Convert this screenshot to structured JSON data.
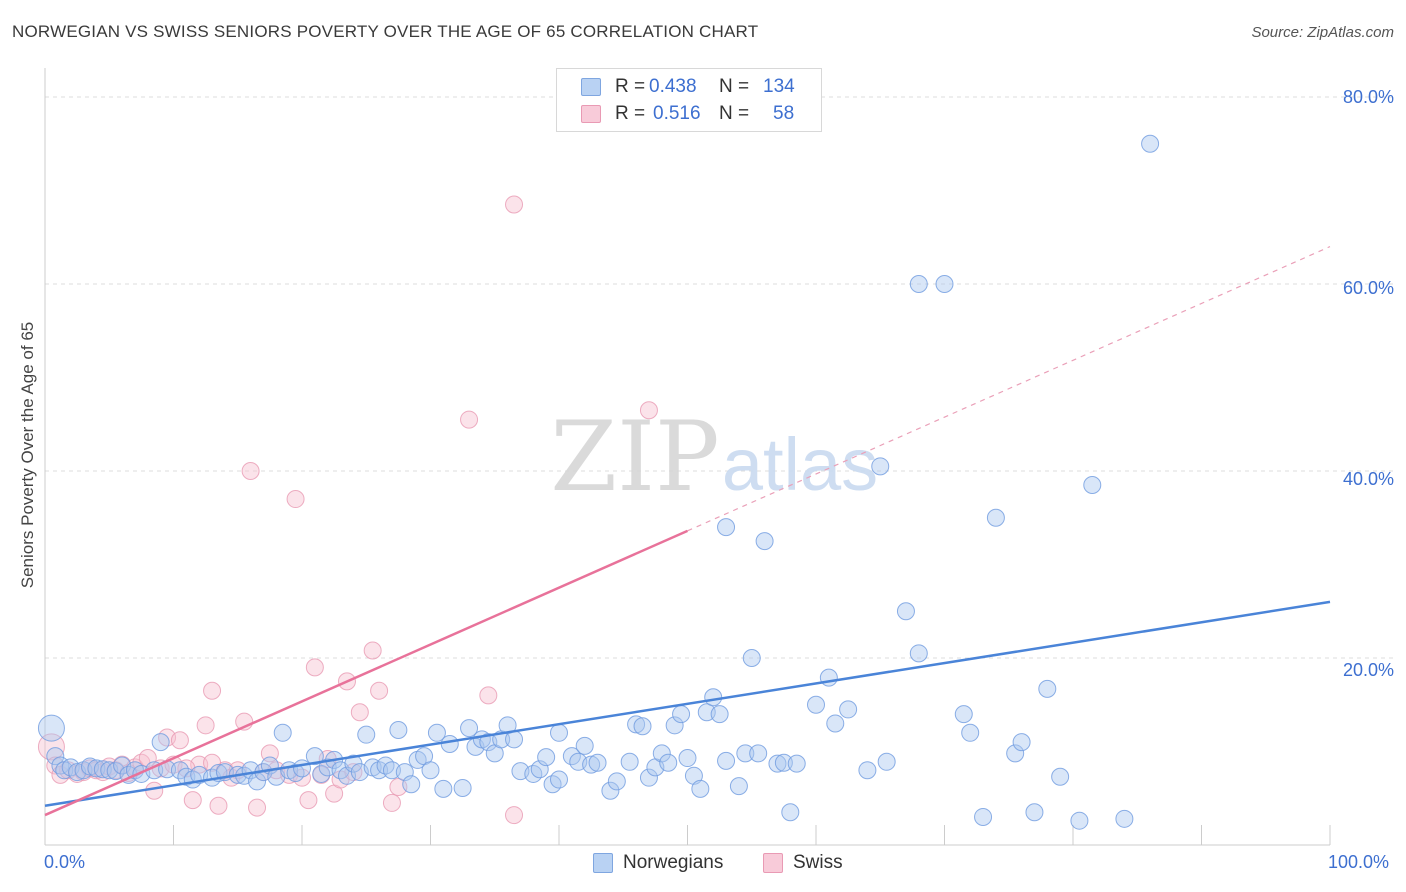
{
  "title": "NORWEGIAN VS SWISS SENIORS POVERTY OVER THE AGE OF 65 CORRELATION CHART",
  "source": "Source: ZipAtlas.com",
  "watermark": {
    "zip": "ZIP",
    "atlas": "atlas"
  },
  "colors": {
    "blue": "#4a84d8",
    "blue_fill": "#aac8f0",
    "pink": "#e8729a",
    "pink_fill": "#f6c0d1",
    "grid": "#dddddd"
  },
  "legend_top": {
    "rows": [
      {
        "r_label": "R =",
        "r_value": "0.438",
        "n_label": "N =",
        "n_value": "134"
      },
      {
        "r_label": "R =",
        "r_value": "0.516",
        "n_label": "N =",
        "n_value": "58"
      }
    ]
  },
  "legend_bottom": {
    "items": [
      "Norwegians",
      "Swiss"
    ]
  },
  "x_ticks": {
    "left": "0.0%",
    "right": "100.0%"
  },
  "y_ticks": [
    "80.0%",
    "60.0%",
    "40.0%",
    "20.0%"
  ],
  "chart_data": {
    "type": "scatter",
    "title": "NORWEGIAN VS SWISS SENIORS POVERTY OVER THE AGE OF 65 CORRELATION CHART",
    "xlabel": "",
    "ylabel": "Seniors Poverty Over the Age of 65",
    "xlim": [
      0,
      100
    ],
    "ylim": [
      0,
      80
    ],
    "grid": true,
    "legend_position": "bottom",
    "series": [
      {
        "name": "Norwegians",
        "color": "#4a84d8",
        "R": 0.438,
        "N": 134,
        "trend": {
          "x": [
            0,
            100
          ],
          "y": [
            4.2,
            26.0
          ],
          "dashed_from": null
        },
        "points": [
          [
            0.5,
            12.5
          ],
          [
            0.8,
            9.5
          ],
          [
            1.2,
            8.5
          ],
          [
            1.5,
            8.0
          ],
          [
            2.0,
            8.3
          ],
          [
            2.5,
            7.8
          ],
          [
            3.0,
            8.0
          ],
          [
            3.5,
            8.4
          ],
          [
            4.0,
            8.2
          ],
          [
            4.5,
            8.1
          ],
          [
            5.0,
            8.0
          ],
          [
            5.5,
            7.9
          ],
          [
            6.0,
            8.5
          ],
          [
            6.5,
            7.5
          ],
          [
            7.0,
            8.0
          ],
          [
            7.5,
            7.6
          ],
          [
            8.5,
            8.0
          ],
          [
            9.0,
            11.0
          ],
          [
            9.5,
            8.1
          ],
          [
            10.5,
            8.0
          ],
          [
            11.0,
            7.3
          ],
          [
            11.5,
            7.0
          ],
          [
            12.0,
            7.5
          ],
          [
            13.0,
            7.2
          ],
          [
            13.5,
            7.7
          ],
          [
            14.0,
            7.8
          ],
          [
            15.0,
            7.5
          ],
          [
            15.5,
            7.4
          ],
          [
            16.0,
            8.0
          ],
          [
            16.5,
            6.8
          ],
          [
            17.0,
            7.8
          ],
          [
            17.5,
            8.5
          ],
          [
            18.0,
            7.3
          ],
          [
            18.5,
            12.0
          ],
          [
            19.0,
            8.0
          ],
          [
            19.5,
            7.7
          ],
          [
            20.0,
            8.2
          ],
          [
            21.0,
            9.5
          ],
          [
            21.5,
            7.6
          ],
          [
            22.0,
            8.3
          ],
          [
            22.5,
            9.1
          ],
          [
            23.0,
            8.0
          ],
          [
            23.5,
            7.4
          ],
          [
            24.0,
            8.7
          ],
          [
            24.5,
            7.8
          ],
          [
            25.0,
            11.8
          ],
          [
            25.5,
            8.3
          ],
          [
            26.0,
            8.0
          ],
          [
            26.5,
            8.5
          ],
          [
            27.0,
            8.0
          ],
          [
            27.5,
            12.3
          ],
          [
            28.0,
            7.8
          ],
          [
            28.5,
            6.5
          ],
          [
            29.0,
            9.1
          ],
          [
            29.5,
            9.5
          ],
          [
            30.0,
            8.0
          ],
          [
            30.5,
            12.0
          ],
          [
            31.0,
            6.0
          ],
          [
            31.5,
            10.8
          ],
          [
            32.5,
            6.1
          ],
          [
            33.0,
            12.5
          ],
          [
            33.5,
            10.5
          ],
          [
            34.0,
            11.3
          ],
          [
            34.5,
            11.0
          ],
          [
            35.0,
            9.8
          ],
          [
            35.5,
            11.3
          ],
          [
            36.0,
            12.8
          ],
          [
            36.5,
            11.3
          ],
          [
            37.0,
            7.9
          ],
          [
            38.0,
            7.6
          ],
          [
            38.5,
            8.1
          ],
          [
            39.0,
            9.4
          ],
          [
            39.5,
            6.5
          ],
          [
            40.0,
            12.0
          ],
          [
            41.0,
            9.5
          ],
          [
            41.5,
            8.9
          ],
          [
            42.0,
            10.6
          ],
          [
            42.5,
            8.6
          ],
          [
            43.0,
            8.8
          ],
          [
            44.0,
            5.8
          ],
          [
            44.5,
            6.8
          ],
          [
            45.5,
            8.9
          ],
          [
            46.0,
            12.9
          ],
          [
            46.5,
            12.7
          ],
          [
            47.0,
            7.2
          ],
          [
            47.5,
            8.3
          ],
          [
            48.0,
            9.8
          ],
          [
            48.5,
            8.8
          ],
          [
            49.0,
            12.8
          ],
          [
            49.5,
            14.0
          ],
          [
            50.0,
            9.3
          ],
          [
            50.5,
            7.4
          ],
          [
            51.0,
            6.0
          ],
          [
            51.5,
            14.2
          ],
          [
            52.0,
            15.8
          ],
          [
            52.5,
            14.0
          ],
          [
            53.0,
            9.0
          ],
          [
            54.0,
            6.3
          ],
          [
            54.5,
            9.8
          ],
          [
            55.0,
            20.0
          ],
          [
            55.5,
            9.8
          ],
          [
            57.0,
            8.7
          ],
          [
            57.5,
            8.8
          ],
          [
            58.5,
            8.7
          ],
          [
            60.0,
            15.0
          ],
          [
            61.0,
            17.9
          ],
          [
            61.5,
            13.0
          ],
          [
            62.5,
            14.5
          ],
          [
            64.0,
            8.0
          ],
          [
            65.5,
            8.9
          ],
          [
            67.0,
            25.0
          ],
          [
            68.0,
            60.0
          ],
          [
            70.0,
            60.0
          ],
          [
            71.5,
            14.0
          ],
          [
            72.0,
            12.0
          ],
          [
            73.0,
            3.0
          ],
          [
            74.0,
            35.0
          ],
          [
            75.5,
            9.8
          ],
          [
            76.0,
            11.0
          ],
          [
            77.0,
            3.5
          ],
          [
            78.0,
            16.7
          ],
          [
            79.0,
            7.3
          ],
          [
            84.0,
            2.8
          ],
          [
            80.5,
            2.6
          ],
          [
            53.0,
            34.0
          ],
          [
            56.0,
            32.5
          ],
          [
            65.0,
            40.5
          ],
          [
            68.0,
            20.5
          ],
          [
            81.5,
            38.5
          ],
          [
            86.0,
            75.0
          ],
          [
            58.0,
            3.5
          ],
          [
            40.0,
            7.0
          ]
        ]
      },
      {
        "name": "Swiss",
        "color": "#e8729a",
        "R": 0.516,
        "N": 58,
        "trend": {
          "x": [
            0,
            100
          ],
          "y": [
            3.2,
            64.0
          ],
          "solid_until_x": 50
        },
        "points": [
          [
            0.5,
            10.5
          ],
          [
            0.8,
            8.5
          ],
          [
            1.2,
            7.5
          ],
          [
            1.8,
            8.0
          ],
          [
            2.5,
            7.6
          ],
          [
            3.0,
            7.8
          ],
          [
            3.5,
            8.2
          ],
          [
            4.0,
            8.0
          ],
          [
            4.5,
            7.8
          ],
          [
            5.0,
            8.4
          ],
          [
            5.5,
            8.0
          ],
          [
            6.0,
            8.6
          ],
          [
            6.5,
            7.7
          ],
          [
            7.0,
            8.3
          ],
          [
            7.5,
            8.8
          ],
          [
            8.0,
            9.3
          ],
          [
            8.5,
            5.8
          ],
          [
            9.0,
            8.2
          ],
          [
            9.5,
            11.5
          ],
          [
            10.0,
            8.6
          ],
          [
            10.5,
            11.2
          ],
          [
            11.5,
            4.8
          ],
          [
            12.0,
            8.6
          ],
          [
            12.5,
            12.8
          ],
          [
            13.0,
            16.5
          ],
          [
            13.5,
            4.2
          ],
          [
            14.0,
            8.0
          ],
          [
            14.5,
            7.2
          ],
          [
            15.5,
            13.2
          ],
          [
            16.0,
            40.0
          ],
          [
            16.5,
            4.0
          ],
          [
            17.0,
            7.8
          ],
          [
            17.5,
            9.8
          ],
          [
            18.0,
            8.0
          ],
          [
            19.0,
            7.5
          ],
          [
            19.5,
            37.0
          ],
          [
            20.0,
            7.2
          ],
          [
            20.5,
            4.8
          ],
          [
            21.0,
            19.0
          ],
          [
            21.5,
            7.5
          ],
          [
            22.0,
            9.2
          ],
          [
            22.5,
            5.5
          ],
          [
            23.0,
            7.0
          ],
          [
            23.5,
            17.5
          ],
          [
            24.0,
            7.8
          ],
          [
            24.5,
            14.2
          ],
          [
            25.5,
            20.8
          ],
          [
            26.0,
            16.5
          ],
          [
            27.0,
            4.5
          ],
          [
            27.5,
            6.2
          ],
          [
            33.0,
            45.5
          ],
          [
            34.5,
            16.0
          ],
          [
            36.5,
            68.5
          ],
          [
            36.5,
            3.2
          ],
          [
            47.0,
            46.5
          ],
          [
            11.0,
            8.2
          ],
          [
            13.0,
            8.8
          ],
          [
            15.0,
            8.0
          ]
        ]
      }
    ]
  }
}
